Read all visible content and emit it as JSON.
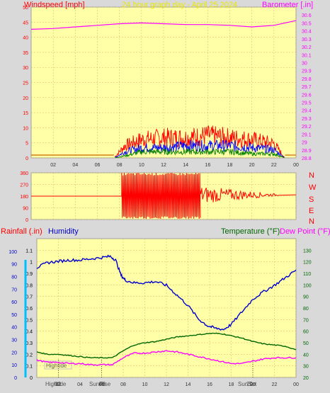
{
  "header": {
    "left_label": "Windspeed [mph]",
    "title": "24 hour graph day - April 25 2024",
    "right_label": "Barometer [.in]"
  },
  "lower_header": {
    "rainfall_label": "Rainfall (.in)",
    "humidity_label": "Humidity",
    "temperature_label": "Temperature (°F)",
    "dewpoint_label": "Dew Point (°F)"
  },
  "colors": {
    "frame_bg": "#d9d9d9",
    "plot_bg": "#ffffa8",
    "left_axis": "#ff0000",
    "right_axis": "#ff00ff",
    "title": "#e8e800",
    "humidity": "#0000cc",
    "temperature": "#006600",
    "dewpoint": "#ff00ff",
    "rain": "#00bfff",
    "wind_gust": "#ff0000",
    "wind_avg": "#0000ff",
    "wind_low": "#008000",
    "direction": "#ff0000",
    "grid": "#d6b36a"
  },
  "direction_labels": [
    "N",
    "W",
    "S",
    "E",
    "N"
  ],
  "event_labels": {
    "hightide_box": "Hightide",
    "hightide": "Hightide",
    "sunrise": "SunRise",
    "sunset": "SunSet",
    "digits_sunrise": "08",
    "digits_sunset": "20",
    "digits_hightide": "02"
  },
  "chart_data": [
    {
      "type": "line",
      "title": "24 hour graph day - April 25 2024",
      "xlabel": "",
      "ylabel": "Windspeed [mph]",
      "y2label": "Barometer [.in]",
      "x_ticks": [
        "02",
        "04",
        "06",
        "08",
        "10",
        "12",
        "14",
        "16",
        "18",
        "20",
        "22",
        "00"
      ],
      "ylim": [
        0,
        50
      ],
      "y_ticks": [
        0,
        5,
        10,
        15,
        20,
        25,
        30,
        35,
        40,
        45,
        50
      ],
      "y2lim": [
        28.8,
        30.7
      ],
      "y2_ticks": [
        "28.8",
        "28.9",
        "29",
        "29.1",
        "29.2",
        "29.3",
        "29.4",
        "29.5",
        "29.6",
        "29.7",
        "29.8",
        "29.9",
        "30",
        "30.1",
        "30.2",
        "30.3",
        "30.4",
        "30.5",
        "30.6"
      ],
      "series": [
        {
          "name": "Barometer [.in]",
          "x": [
            0,
            2,
            4,
            6,
            8,
            10,
            12,
            14,
            16,
            18,
            20,
            22,
            24
          ],
          "values": [
            30.42,
            30.43,
            30.45,
            30.47,
            30.49,
            30.5,
            30.49,
            30.48,
            30.48,
            30.47,
            30.45,
            30.47,
            30.53
          ]
        }
      ],
      "wind_gust_envelope": {
        "x": [
          0,
          7.5,
          8.5,
          10,
          12,
          14,
          16,
          18,
          20,
          22,
          23
        ],
        "values": [
          0,
          0,
          6,
          9,
          10,
          10,
          11,
          10,
          9,
          7,
          0
        ]
      },
      "wind_avg_envelope": {
        "x": [
          0,
          7.5,
          8.5,
          10,
          12,
          14,
          16,
          18,
          20,
          22,
          23
        ],
        "values": [
          0,
          0,
          3,
          5,
          5,
          6,
          6,
          6,
          5,
          4,
          0
        ]
      },
      "wind_low_envelope": {
        "x": [
          0,
          7.5,
          8.5,
          10,
          12,
          14,
          16,
          18,
          20,
          22,
          23
        ],
        "values": [
          0,
          0,
          1,
          3,
          3,
          3,
          3,
          3,
          2,
          2,
          0
        ]
      }
    },
    {
      "type": "line",
      "title": "",
      "xlabel": "",
      "ylabel": "",
      "y_ticks": [
        0,
        90,
        180,
        270,
        360
      ],
      "ylim": [
        0,
        360
      ],
      "series": [
        {
          "name": "",
          "x": [
            0,
            8.2,
            8.6,
            9,
            9.5,
            10,
            10.5,
            11,
            11.5,
            12,
            12.5,
            13,
            13.5,
            14,
            14.5,
            15,
            15.5,
            16,
            17,
            18,
            19,
            20,
            21,
            22,
            23,
            24
          ],
          "values": [
            180,
            180,
            340,
            20,
            340,
            20,
            340,
            20,
            340,
            20,
            340,
            20,
            340,
            20,
            330,
            40,
            250,
            200,
            210,
            190,
            180,
            170,
            185,
            175,
            190,
            190
          ]
        }
      ]
    },
    {
      "type": "line",
      "title": "",
      "xlabel": "",
      "ylabel": "Rainfall (.in)",
      "x_ticks": [
        "02",
        "04",
        "06",
        "08",
        "10",
        "12",
        "14",
        "16",
        "18",
        "20",
        "22",
        "00"
      ],
      "ylim": [
        0,
        1.2
      ],
      "y_ticks": [
        "0",
        "0.1",
        "0.2",
        "0.3",
        "0.4",
        "0.5",
        "0.6",
        "0.7",
        "0.8",
        "0.9",
        "1",
        "1.1"
      ],
      "y_humidity_ticks": [
        0,
        10,
        20,
        30,
        40,
        50,
        60,
        70,
        80,
        90,
        100
      ],
      "y2lim": [
        20,
        140
      ],
      "y2_ticks": [
        20,
        30,
        40,
        50,
        60,
        70,
        80,
        90,
        100,
        110,
        120,
        130
      ],
      "series": [
        {
          "name": "Humidity",
          "axis": "humidity",
          "x": [
            0,
            1,
            2,
            3,
            4,
            5,
            6,
            6.8,
            7.3,
            7.8,
            8.2,
            9,
            10,
            11,
            12,
            13,
            14,
            15,
            15.8,
            16.5,
            17.3,
            18,
            19,
            20,
            21,
            22,
            23,
            24
          ],
          "values": [
            87,
            91,
            92,
            93,
            93,
            94,
            95,
            96,
            93,
            81,
            77,
            75,
            75,
            76,
            73,
            65,
            57,
            46,
            41,
            39,
            38,
            42,
            52,
            62,
            68,
            73,
            79,
            85
          ]
        },
        {
          "name": "Temperature (°F)",
          "axis": "right",
          "x": [
            0,
            1,
            2,
            3,
            4,
            5,
            6,
            7,
            8,
            9,
            10,
            11,
            12,
            13,
            14,
            15,
            16,
            17,
            18,
            19,
            20,
            21,
            22,
            23,
            24
          ],
          "values": [
            42,
            40,
            40,
            39,
            38,
            37,
            37,
            37,
            43,
            48,
            50,
            51,
            53,
            55,
            56,
            57,
            58,
            58,
            56,
            54,
            51,
            49,
            48,
            47,
            44
          ]
        },
        {
          "name": "Dew Point (°F)",
          "axis": "right",
          "x": [
            0,
            1,
            2,
            3,
            4,
            5,
            6,
            7,
            8,
            9,
            10,
            11,
            12,
            13,
            14,
            15,
            16,
            17,
            18,
            19,
            20,
            21,
            22,
            23,
            24
          ],
          "values": [
            35,
            33,
            33,
            32,
            32,
            31,
            31,
            31,
            37,
            41,
            41,
            42,
            43,
            42,
            40,
            38,
            36,
            34,
            32,
            32,
            34,
            36,
            37,
            37,
            37
          ]
        }
      ]
    }
  ]
}
